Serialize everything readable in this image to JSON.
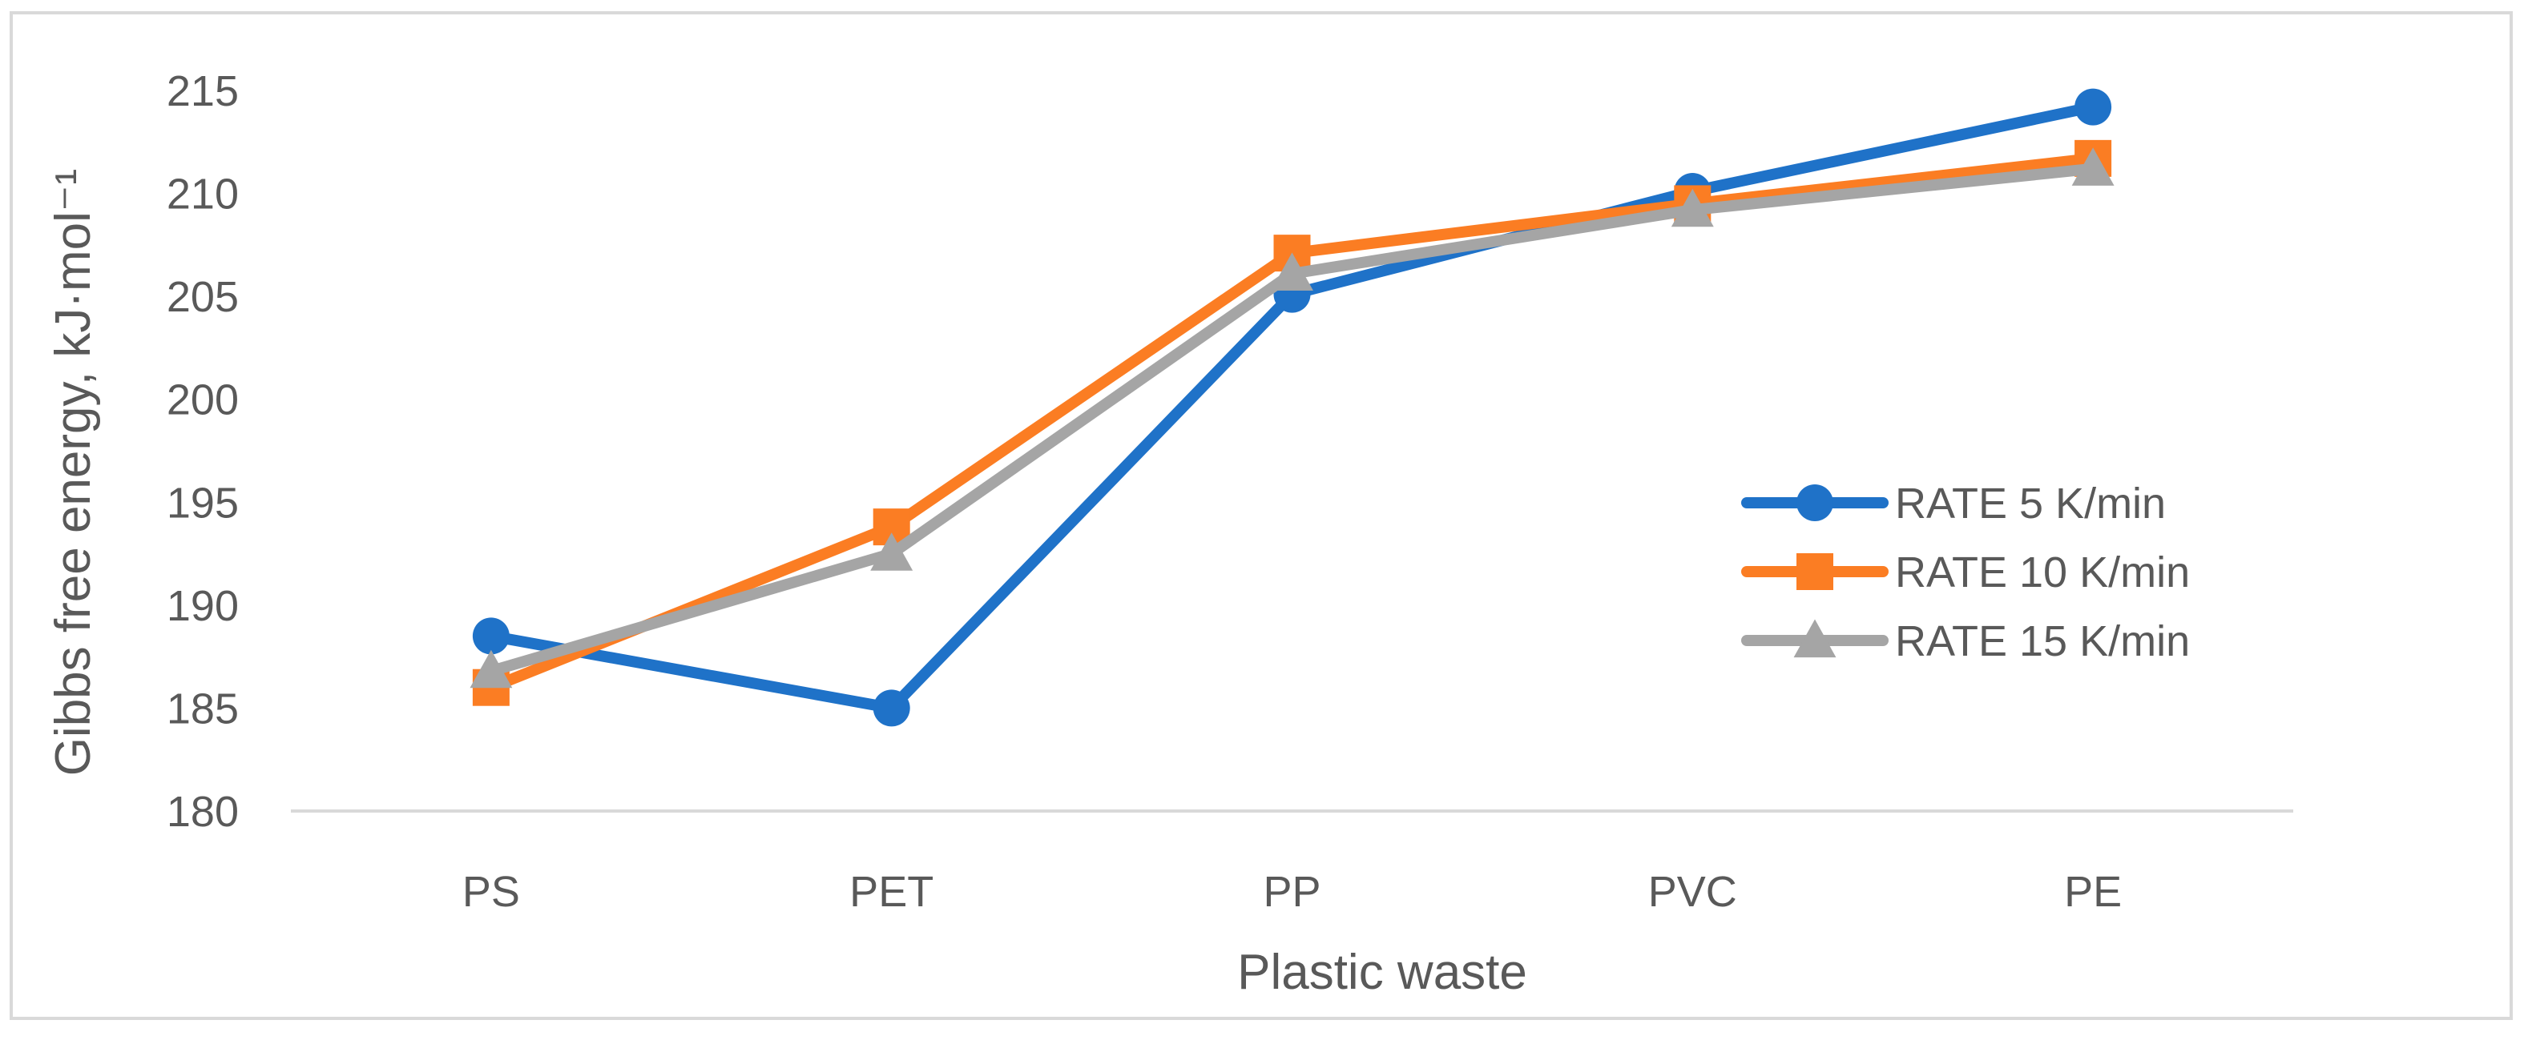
{
  "chart_data": {
    "type": "line",
    "title": "",
    "xlabel": "Plastic waste",
    "ylabel": "Gibbs free energy, kJ·mol⁻¹",
    "categories": [
      "PS",
      "PET",
      "PP",
      "PVC",
      "PE"
    ],
    "ylim": [
      180,
      215
    ],
    "yticks": [
      180,
      185,
      190,
      195,
      200,
      205,
      210,
      215
    ],
    "grid": false,
    "legend_position": "right",
    "series": [
      {
        "name": "RATE 5 K/min",
        "color": "#1f72c8",
        "marker": "circle",
        "values": [
          188.5,
          185.0,
          205.1,
          210.1,
          214.2
        ]
      },
      {
        "name": "RATE 10 K/min",
        "color": "#fb7d23",
        "marker": "square",
        "values": [
          186.0,
          193.8,
          207.1,
          209.5,
          211.7
        ]
      },
      {
        "name": "RATE 15 K/min",
        "color": "#a5a5a5",
        "marker": "triangle",
        "values": [
          186.8,
          192.5,
          206.1,
          209.2,
          211.2
        ]
      }
    ]
  }
}
